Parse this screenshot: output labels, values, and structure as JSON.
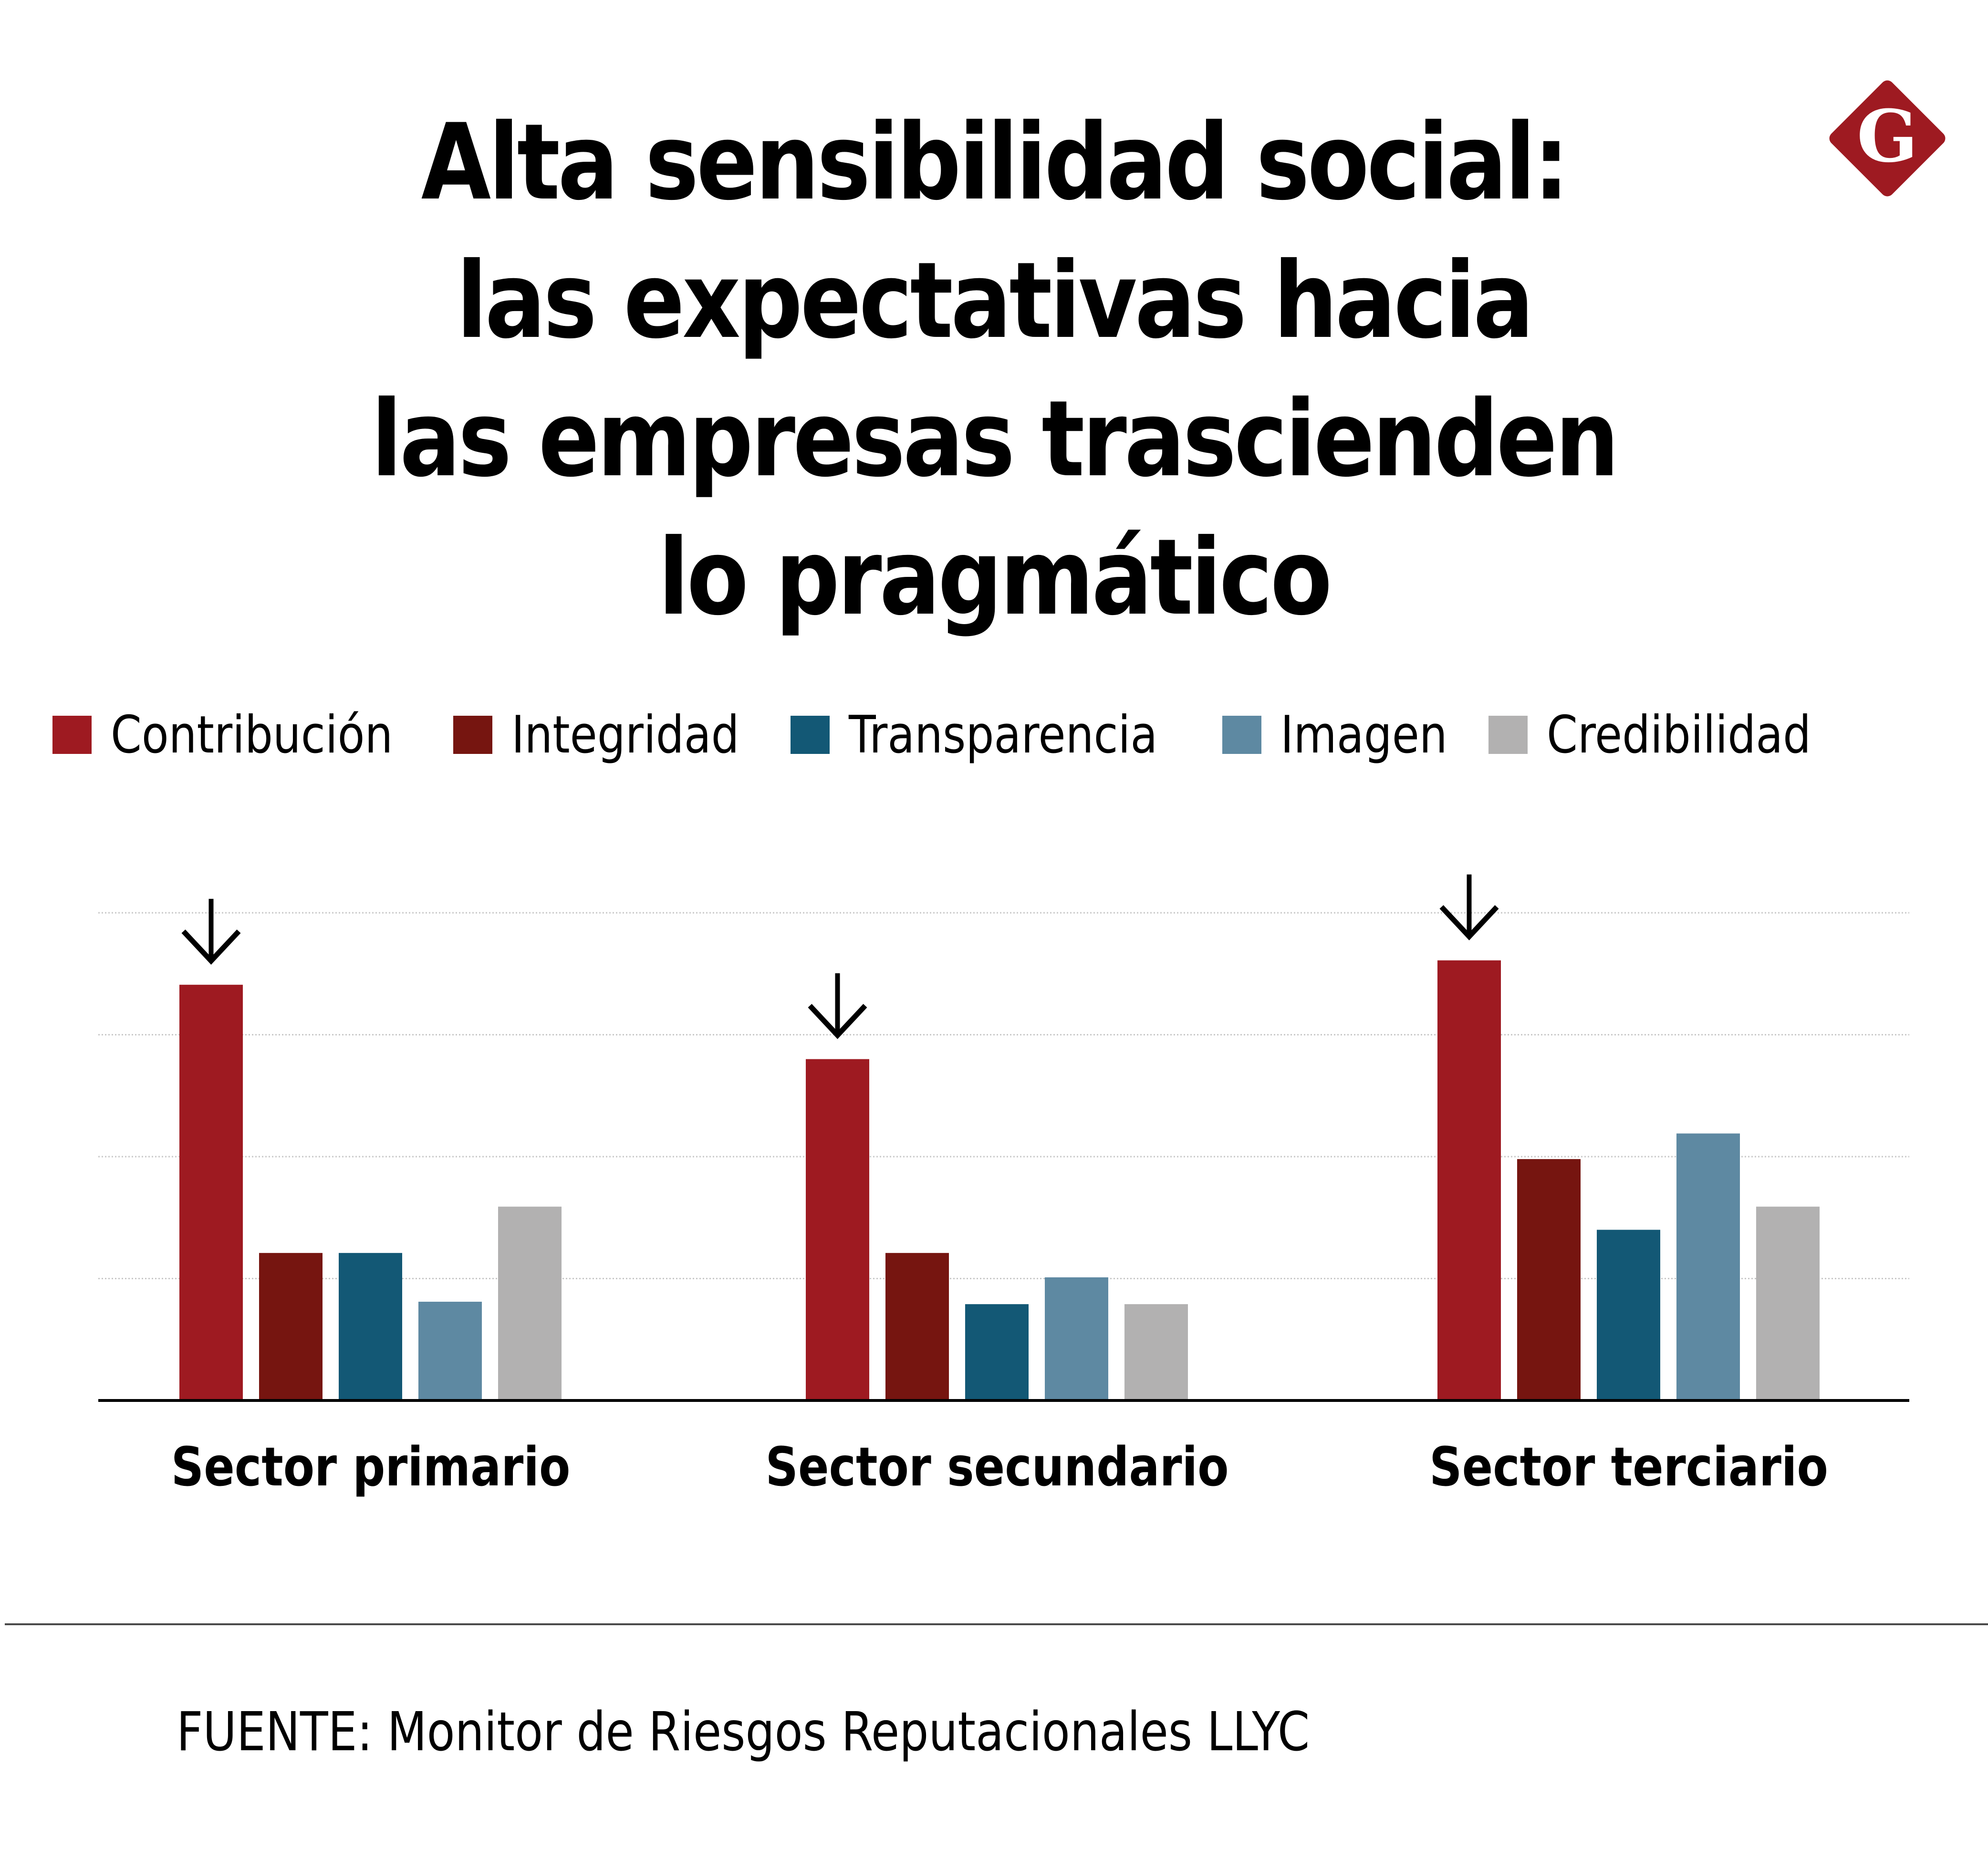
{
  "header": {
    "title_lines": [
      "Alta sensibilidad social:",
      "las expectativas hacia",
      "las empresas trascienden",
      "lo pragmático"
    ],
    "logo_letter": "G",
    "logo_color": "#9e1a21"
  },
  "legend": [
    {
      "label": "Contribución",
      "color": "#9e1a21"
    },
    {
      "label": "Integridad",
      "color": "#761510"
    },
    {
      "label": "Transparencia",
      "color": "#135875"
    },
    {
      "label": "Imagen",
      "color": "#5e89a2"
    },
    {
      "label": "Credibilidad",
      "color": "#b2b1b1"
    }
  ],
  "chart_data": {
    "type": "bar",
    "title": "Alta sensibilidad social: las expectativas hacia las empresas trascienden lo pragmático",
    "xlabel": "",
    "ylabel": "",
    "categories": [
      "Sector primario",
      "Sector secundario",
      "Sector terciario"
    ],
    "series": [
      {
        "name": "Contribución",
        "color": "#9e1a21",
        "values": [
          3.41,
          2.8,
          3.61
        ]
      },
      {
        "name": "Integridad",
        "color": "#761510",
        "values": [
          1.21,
          1.21,
          1.98
        ]
      },
      {
        "name": "Transparencia",
        "color": "#135875",
        "values": [
          1.21,
          0.79,
          1.4
        ]
      },
      {
        "name": "Imagen",
        "color": "#5e89a2",
        "values": [
          0.81,
          1.01,
          2.19
        ]
      },
      {
        "name": "Credibilidad",
        "color": "#b2b1b1",
        "values": [
          1.59,
          0.79,
          1.59
        ]
      }
    ],
    "ylim": [
      0,
      4
    ],
    "gridlines": [
      1,
      2,
      3,
      4
    ],
    "grid": true,
    "y_tick_labels_shown": false,
    "legend_position": "top",
    "annotations": [
      {
        "type": "down-arrow",
        "category": "Sector primario",
        "series": "Contribución"
      },
      {
        "type": "down-arrow",
        "category": "Sector secundario",
        "series": "Contribución"
      },
      {
        "type": "down-arrow",
        "category": "Sector terciario",
        "series": "Contribución"
      }
    ],
    "note": "No y-axis values are printed; values are expressed in gridline units (4 gridlines above baseline)."
  },
  "footer": {
    "source": "FUENTE: Monitor de Riesgos Reputacionales LLYC"
  }
}
